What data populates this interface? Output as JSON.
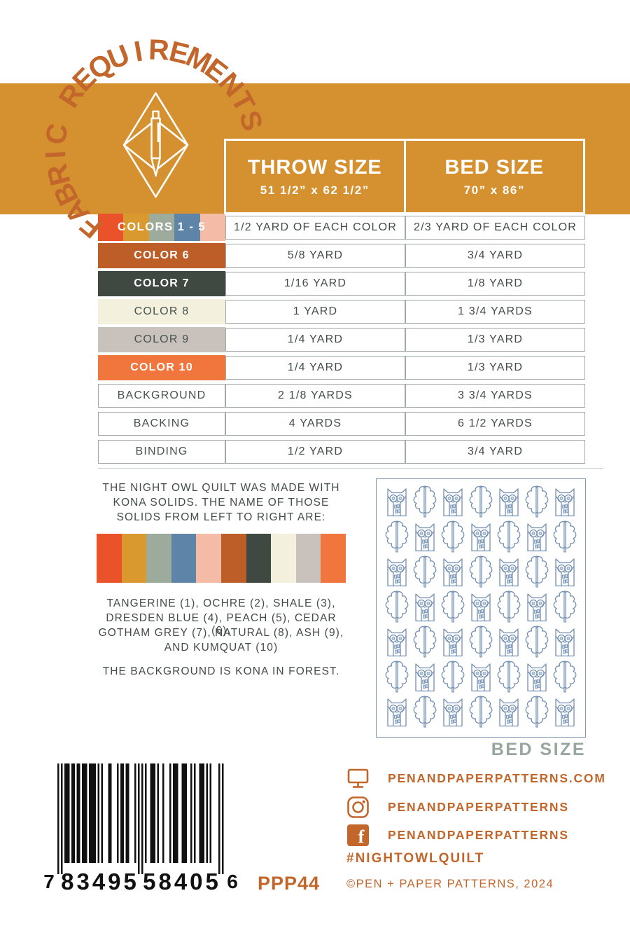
{
  "colors": {
    "band_orange": "#d5912f",
    "accent_orange": "#c2662b",
    "ink_dark": "#424c49",
    "table_border": "#9faaa4",
    "quilt_line": "#7390b2",
    "quilt_fill": "#c9d6e6",
    "caption_gray": "#98a79e",
    "barcode_black": "#111111"
  },
  "header": {
    "arc_title": "FABRIC REQUIREMENTS",
    "logo_icon": "pen-envelope-diamond-logo"
  },
  "table": {
    "columns": [
      {
        "label": "THROW SIZE",
        "sublabel": "51 1/2” x 62 1/2”"
      },
      {
        "label": "BED SIZE",
        "sublabel": "70” x 86”"
      }
    ],
    "rows": [
      {
        "label": "COLORS 1 - 5",
        "label_bg": "swatches",
        "swatches": [
          "#ea5329",
          "#d9992e",
          "#9cab9c",
          "#5e84a8",
          "#f4bca7"
        ],
        "label_text_color": "#ffffff",
        "throw": "1/2 YARD OF EACH COLOR",
        "bed": "2/3 YARD OF EACH COLOR"
      },
      {
        "label": "COLOR 6",
        "label_bg": "#bd5e28",
        "label_text_color": "#ffffff",
        "throw": "5/8 YARD",
        "bed": "3/4 YARD"
      },
      {
        "label": "COLOR 7",
        "label_bg": "#3f4841",
        "label_text_color": "#ffffff",
        "throw": "1/16 YARD",
        "bed": "1/8 YARD"
      },
      {
        "label": "COLOR 8",
        "label_bg": "#f3f1de",
        "label_text_color": "#47524e",
        "throw": "1 YARD",
        "bed": "1 3/4 YARDS"
      },
      {
        "label": "COLOR 9",
        "label_bg": "#c9c2bc",
        "label_text_color": "#47524e",
        "throw": "1/4 YARD",
        "bed": "1/3 YARD"
      },
      {
        "label": "COLOR 10",
        "label_bg": "#f1763d",
        "label_text_color": "#ffffff",
        "throw": "1/4 YARD",
        "bed": "1/3 YARD"
      },
      {
        "label": "BACKGROUND",
        "label_bg": "#ffffff",
        "label_text_color": "#47524e",
        "bordered": true,
        "throw": "2 1/8 YARDS",
        "bed": "3 3/4 YARDS"
      },
      {
        "label": "BACKING",
        "label_bg": "#ffffff",
        "label_text_color": "#47524e",
        "bordered": true,
        "throw": "4 YARDS",
        "bed": "6 1/2 YARDS"
      },
      {
        "label": "BINDING",
        "label_bg": "#ffffff",
        "label_text_color": "#47524e",
        "bordered": true,
        "throw": "1/2 YARD",
        "bed": "3/4 YARD"
      }
    ]
  },
  "notes": {
    "intro_lines": [
      "THE NIGHT OWL QUILT WAS MADE WITH",
      "KONA SOLIDS. THE NAME OF THOSE",
      "SOLIDS FROM LEFT TO RIGHT ARE:"
    ],
    "palette": [
      {
        "name": "TANGERINE",
        "hex": "#ea5329"
      },
      {
        "name": "OCHRE",
        "hex": "#d9992e"
      },
      {
        "name": "SHALE",
        "hex": "#9cab9c"
      },
      {
        "name": "DRESDEN BLUE",
        "hex": "#5e84a8"
      },
      {
        "name": "PEACH",
        "hex": "#f4bca7"
      },
      {
        "name": "CEDAR",
        "hex": "#bd5e28"
      },
      {
        "name": "GOTHAM GREY",
        "hex": "#3f4841"
      },
      {
        "name": "NATURAL",
        "hex": "#f3f1de"
      },
      {
        "name": "ASH",
        "hex": "#c9c2bc"
      },
      {
        "name": "KUMQUAT",
        "hex": "#f1763d"
      }
    ],
    "names_lines": [
      "TANGERINE (1), OCHRE (2), SHALE (3),",
      "DRESDEN BLUE (4), PEACH (5), CEDAR (6),",
      "GOTHAM GREY (7), NATURAL (8), ASH (9),",
      "AND KUMQUAT (10)"
    ],
    "background_note": "THE BACKGROUND IS KONA IN FOREST."
  },
  "quilt": {
    "caption": "BED SIZE",
    "rows": 7,
    "cols": 7,
    "motifs": [
      "owl",
      "leaf"
    ]
  },
  "footer": {
    "barcode": {
      "left_digit": "7",
      "group1": "83495",
      "group2": "58405",
      "right_digit": "6"
    },
    "sku": "PPP44",
    "links": [
      {
        "icon": "monitor-icon",
        "label": "PENANDPAPERPATTERNS.COM"
      },
      {
        "icon": "instagram-icon",
        "label": "PENANDPAPERPATTERNS"
      },
      {
        "icon": "facebook-icon",
        "label": "PENANDPAPERPATTERNS"
      }
    ],
    "hashtag": "#NIGHTOWLQUILT",
    "copyright": "©PEN + PAPER PATTERNS, 2024"
  }
}
